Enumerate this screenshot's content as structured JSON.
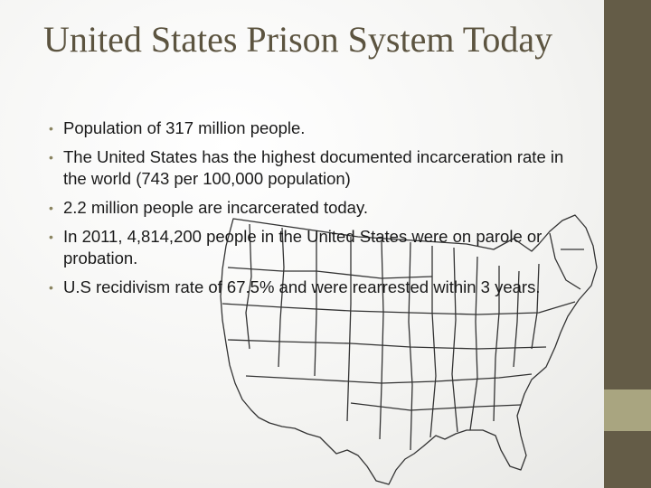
{
  "slide": {
    "title": "United States Prison System Today",
    "bullets": [
      "Population of 317 million people.",
      "The United States has the highest documented incarceration rate in the world (743 per 100,000 population)",
      "2.2 million people are incarcerated today.",
      "In 2011, 4,814,200 people in the United States were on parole or probation.",
      "U.S recidivism rate of 67.5% and were rearrested within 3 years."
    ]
  },
  "theme": {
    "title_color": "#5c5440",
    "band_color": "#645c47",
    "band_accent_color": "#a9a580",
    "bullet_color": "#8a8460"
  },
  "image": {
    "icon": "us-states-outline-map"
  }
}
